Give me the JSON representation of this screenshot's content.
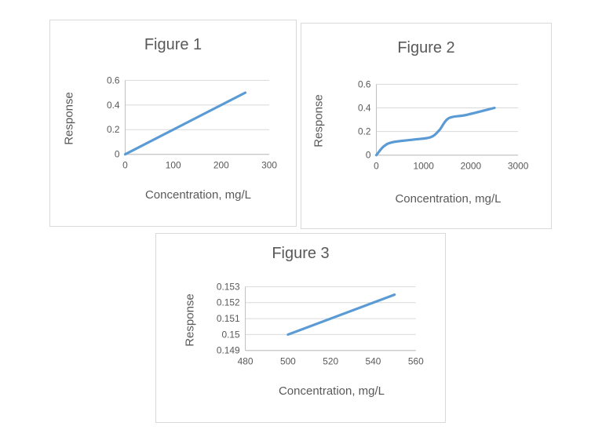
{
  "page": {
    "background": "#ffffff"
  },
  "chart_data": [
    {
      "type": "line",
      "title": "Figure 1",
      "xlabel": "Concentration, mg/L",
      "ylabel": "Response",
      "xlim": [
        0,
        300
      ],
      "ylim": [
        0,
        0.6
      ],
      "grid": "on",
      "legend": "none",
      "xticks": [
        {
          "v": 0,
          "label": "0"
        },
        {
          "v": 100,
          "label": "100"
        },
        {
          "v": 200,
          "label": "200"
        },
        {
          "v": 300,
          "label": "300"
        }
      ],
      "yticks": [
        {
          "v": 0,
          "label": "0"
        },
        {
          "v": 0.2,
          "label": "0.2"
        },
        {
          "v": 0.4,
          "label": "0.4"
        },
        {
          "v": 0.6,
          "label": "0.6"
        }
      ],
      "colors": {
        "line": "#5b9bd5",
        "grid": "#d9d9d9",
        "axis": "#bfbfbf",
        "text": "#595959"
      },
      "series": [
        {
          "name": "Response",
          "smooth": false,
          "points": [
            [
              0,
              0
            ],
            [
              250,
              0.5
            ]
          ]
        }
      ]
    },
    {
      "type": "line",
      "title": "Figure 2",
      "xlabel": "Concentration, mg/L",
      "ylabel": "Response",
      "xlim": [
        0,
        3000
      ],
      "ylim": [
        0,
        0.6
      ],
      "grid": "on",
      "legend": "none",
      "xticks": [
        {
          "v": 0,
          "label": "0"
        },
        {
          "v": 1000,
          "label": "1000"
        },
        {
          "v": 2000,
          "label": "2000"
        },
        {
          "v": 3000,
          "label": "3000"
        }
      ],
      "yticks": [
        {
          "v": 0,
          "label": "0"
        },
        {
          "v": 0.2,
          "label": "0.2"
        },
        {
          "v": 0.4,
          "label": "0.4"
        },
        {
          "v": 0.6,
          "label": "0.6"
        }
      ],
      "colors": {
        "line": "#5b9bd5",
        "grid": "#d9d9d9",
        "axis": "#bfbfbf",
        "text": "#595959"
      },
      "series": [
        {
          "name": "Response",
          "smooth": true,
          "points": [
            [
              0,
              0
            ],
            [
              160,
              0.075
            ],
            [
              350,
              0.11
            ],
            [
              800,
              0.132
            ],
            [
              1150,
              0.152
            ],
            [
              1330,
              0.21
            ],
            [
              1530,
              0.312
            ],
            [
              1900,
              0.34
            ],
            [
              2500,
              0.4
            ]
          ]
        }
      ]
    },
    {
      "type": "line",
      "title": "Figure 3",
      "xlabel": "Concentration, mg/L",
      "ylabel": "Response",
      "xlim": [
        480,
        560
      ],
      "ylim": [
        0.149,
        0.153
      ],
      "grid": "on",
      "legend": "none",
      "xticks": [
        {
          "v": 480,
          "label": "480"
        },
        {
          "v": 500,
          "label": "500"
        },
        {
          "v": 520,
          "label": "520"
        },
        {
          "v": 540,
          "label": "540"
        },
        {
          "v": 560,
          "label": "560"
        }
      ],
      "yticks": [
        {
          "v": 0.149,
          "label": "0.149"
        },
        {
          "v": 0.15,
          "label": "0.15"
        },
        {
          "v": 0.151,
          "label": "0.151"
        },
        {
          "v": 0.152,
          "label": "0.152"
        },
        {
          "v": 0.153,
          "label": "0.153"
        }
      ],
      "colors": {
        "line": "#5b9bd5",
        "grid": "#d9d9d9",
        "axis": "#bfbfbf",
        "text": "#595959"
      },
      "series": [
        {
          "name": "Response",
          "smooth": false,
          "points": [
            [
              500,
              0.15
            ],
            [
              550,
              0.1525
            ]
          ]
        }
      ]
    }
  ]
}
